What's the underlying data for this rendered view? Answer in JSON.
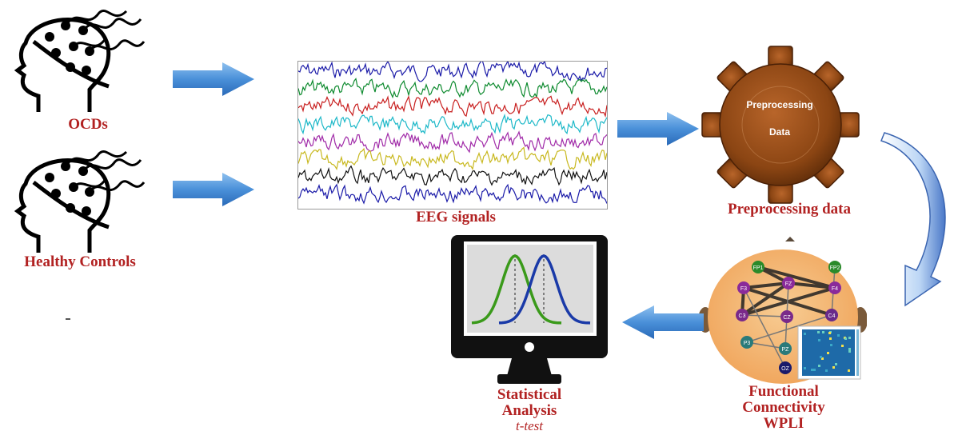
{
  "subjects": {
    "group1_label": "OCDs",
    "group2_label": "Healthy Controls"
  },
  "eeg": {
    "label": "EEG signals",
    "channel_colors": [
      "#1a1aa8",
      "#0d8a2e",
      "#c81e1e",
      "#1cb8c8",
      "#a02aa8",
      "#c8b81e",
      "#101010",
      "#1a1aa8"
    ]
  },
  "preprocessing": {
    "gear_text_line1": "Preprocessing",
    "gear_text_line2": "Data",
    "label": "Preprocessing data"
  },
  "connectivity": {
    "label_line1": "Functional",
    "label_line2": "Connectivity",
    "label_line3": "WPLI",
    "electrodes": [
      "FP1",
      "FP2",
      "F3",
      "FZ",
      "F4",
      "C3",
      "CZ",
      "C4",
      "P3",
      "PZ",
      "OZ"
    ]
  },
  "statistics": {
    "label_line1": "Statistical",
    "label_line2": "Analysis",
    "label_line3": "t-test"
  },
  "colors": {
    "label": "#b22222",
    "arrow": "#4a90d9",
    "gear": "#8b4513",
    "distribution_a": "#3a9a1a",
    "distribution_b": "#1a3aa8"
  }
}
